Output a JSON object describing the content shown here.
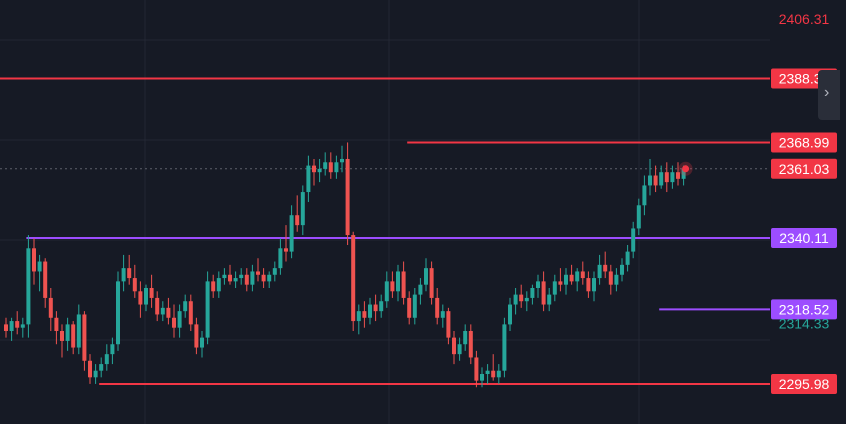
{
  "chart_data": {
    "type": "candlestick",
    "ylim": [
      2290,
      2410
    ],
    "colors": {
      "up": "#26a69a",
      "down": "#ef5350",
      "red_line": "#f23645",
      "purple_line": "#9c4dff",
      "grid": "#232733",
      "axis_text_red": "#f23645",
      "axis_text_green": "#26a69a",
      "background": "#161a25"
    },
    "axis_labels": [
      {
        "text": "2406.31",
        "value": 2406.31,
        "style": "text-red"
      },
      {
        "text": "2388.33",
        "value": 2388.33,
        "style": "badge-red"
      },
      {
        "text": "2368.99",
        "value": 2368.99,
        "style": "badge-red"
      },
      {
        "text": "2361.03",
        "value": 2361.03,
        "style": "badge-red"
      },
      {
        "text": "2340.11",
        "value": 2340.11,
        "style": "badge-purple"
      },
      {
        "text": "2318.52",
        "value": 2318.52,
        "style": "badge-purple"
      },
      {
        "text": "2314.33",
        "value": 2314.33,
        "style": "text-green"
      },
      {
        "text": "2295.98",
        "value": 2295.98,
        "style": "badge-red"
      }
    ],
    "levels": [
      {
        "value": 2388.33,
        "color": "red",
        "from_index": 0
      },
      {
        "value": 2368.99,
        "color": "red",
        "from_index": 72
      },
      {
        "value": 2340.11,
        "color": "purple",
        "from_index": 4
      },
      {
        "value": 2318.52,
        "color": "purple",
        "from_index": 117
      },
      {
        "value": 2295.98,
        "color": "red",
        "from_index": 17
      }
    ],
    "last_price": 2361.03,
    "candles": [
      [
        2314,
        2316,
        2310,
        2312
      ],
      [
        2312,
        2316,
        2309,
        2315
      ],
      [
        2315,
        2318,
        2311,
        2313
      ],
      [
        2313,
        2316,
        2310,
        2314
      ],
      [
        2314,
        2341,
        2310,
        2337
      ],
      [
        2337,
        2340,
        2326,
        2330
      ],
      [
        2330,
        2335,
        2324,
        2333
      ],
      [
        2333,
        2334,
        2319,
        2322
      ],
      [
        2322,
        2325,
        2312,
        2316
      ],
      [
        2316,
        2318,
        2308,
        2312
      ],
      [
        2312,
        2314,
        2304,
        2309
      ],
      [
        2309,
        2316,
        2306,
        2314
      ],
      [
        2314,
        2315,
        2305,
        2307
      ],
      [
        2307,
        2320,
        2305,
        2317
      ],
      [
        2317,
        2318,
        2300,
        2303
      ],
      [
        2303,
        2305,
        2296,
        2298
      ],
      [
        2298,
        2302,
        2296,
        2300
      ],
      [
        2300,
        2304,
        2298,
        2302
      ],
      [
        2302,
        2308,
        2300,
        2305
      ],
      [
        2305,
        2310,
        2302,
        2308
      ],
      [
        2308,
        2330,
        2306,
        2327
      ],
      [
        2327,
        2335,
        2324,
        2331
      ],
      [
        2331,
        2335,
        2326,
        2328
      ],
      [
        2328,
        2332,
        2322,
        2324
      ],
      [
        2324,
        2327,
        2316,
        2320
      ],
      [
        2320,
        2326,
        2318,
        2325
      ],
      [
        2325,
        2329,
        2319,
        2322
      ],
      [
        2322,
        2324,
        2315,
        2317
      ],
      [
        2317,
        2321,
        2315,
        2319
      ],
      [
        2319,
        2322,
        2314,
        2316
      ],
      [
        2316,
        2320,
        2310,
        2313
      ],
      [
        2313,
        2320,
        2310,
        2318
      ],
      [
        2318,
        2323,
        2316,
        2321
      ],
      [
        2321,
        2323,
        2312,
        2314
      ],
      [
        2314,
        2316,
        2305,
        2307
      ],
      [
        2307,
        2312,
        2304,
        2310
      ],
      [
        2310,
        2330,
        2308,
        2327
      ],
      [
        2327,
        2329,
        2322,
        2324
      ],
      [
        2324,
        2330,
        2322,
        2328
      ],
      [
        2328,
        2331,
        2326,
        2329
      ],
      [
        2329,
        2332,
        2326,
        2327
      ],
      [
        2327,
        2330,
        2325,
        2328
      ],
      [
        2328,
        2331,
        2326,
        2329
      ],
      [
        2329,
        2331,
        2324,
        2326
      ],
      [
        2326,
        2332,
        2324,
        2330
      ],
      [
        2330,
        2334,
        2327,
        2329
      ],
      [
        2329,
        2331,
        2325,
        2327
      ],
      [
        2327,
        2330,
        2325,
        2329
      ],
      [
        2329,
        2333,
        2327,
        2331
      ],
      [
        2331,
        2340,
        2329,
        2337
      ],
      [
        2337,
        2344,
        2333,
        2336
      ],
      [
        2336,
        2350,
        2334,
        2347
      ],
      [
        2347,
        2353,
        2342,
        2344
      ],
      [
        2344,
        2356,
        2341,
        2354
      ],
      [
        2354,
        2365,
        2351,
        2362
      ],
      [
        2362,
        2364,
        2356,
        2360
      ],
      [
        2360,
        2364,
        2357,
        2361
      ],
      [
        2361,
        2366,
        2359,
        2363
      ],
      [
        2363,
        2366,
        2358,
        2360
      ],
      [
        2360,
        2365,
        2358,
        2363
      ],
      [
        2363,
        2368,
        2360,
        2364
      ],
      [
        2364,
        2369,
        2338,
        2341
      ],
      [
        2341,
        2342,
        2312,
        2315
      ],
      [
        2315,
        2320,
        2311,
        2318
      ],
      [
        2318,
        2321,
        2313,
        2316
      ],
      [
        2316,
        2322,
        2314,
        2320
      ],
      [
        2320,
        2323,
        2315,
        2318
      ],
      [
        2318,
        2323,
        2316,
        2321
      ],
      [
        2321,
        2330,
        2319,
        2327
      ],
      [
        2327,
        2330,
        2322,
        2324
      ],
      [
        2324,
        2332,
        2321,
        2330
      ],
      [
        2330,
        2333,
        2320,
        2322
      ],
      [
        2322,
        2324,
        2314,
        2316
      ],
      [
        2316,
        2325,
        2314,
        2323
      ],
      [
        2323,
        2328,
        2320,
        2326
      ],
      [
        2326,
        2334,
        2324,
        2331
      ],
      [
        2331,
        2333,
        2320,
        2322
      ],
      [
        2322,
        2325,
        2314,
        2316
      ],
      [
        2316,
        2320,
        2313,
        2318
      ],
      [
        2318,
        2319,
        2308,
        2310
      ],
      [
        2310,
        2312,
        2302,
        2305
      ],
      [
        2305,
        2310,
        2303,
        2308
      ],
      [
        2308,
        2314,
        2306,
        2312
      ],
      [
        2312,
        2314,
        2302,
        2304
      ],
      [
        2304,
        2306,
        2295,
        2297
      ],
      [
        2297,
        2301,
        2295,
        2299
      ],
      [
        2299,
        2302,
        2296,
        2300
      ],
      [
        2300,
        2305,
        2297,
        2298
      ],
      [
        2298,
        2302,
        2296,
        2300
      ],
      [
        2300,
        2316,
        2298,
        2314
      ],
      [
        2314,
        2322,
        2312,
        2320
      ],
      [
        2320,
        2325,
        2317,
        2323
      ],
      [
        2323,
        2326,
        2319,
        2321
      ],
      [
        2321,
        2324,
        2318,
        2322
      ],
      [
        2322,
        2326,
        2320,
        2325
      ],
      [
        2325,
        2329,
        2322,
        2327
      ],
      [
        2327,
        2330,
        2318,
        2320
      ],
      [
        2320,
        2325,
        2318,
        2323
      ],
      [
        2323,
        2329,
        2321,
        2327
      ],
      [
        2327,
        2331,
        2324,
        2326
      ],
      [
        2326,
        2331,
        2323,
        2329
      ],
      [
        2329,
        2332,
        2326,
        2327
      ],
      [
        2327,
        2331,
        2324,
        2330
      ],
      [
        2330,
        2333,
        2326,
        2328
      ],
      [
        2328,
        2330,
        2322,
        2324
      ],
      [
        2324,
        2330,
        2321,
        2328
      ],
      [
        2328,
        2335,
        2326,
        2332
      ],
      [
        2332,
        2336,
        2328,
        2330
      ],
      [
        2330,
        2332,
        2323,
        2326
      ],
      [
        2326,
        2331,
        2324,
        2329
      ],
      [
        2329,
        2334,
        2327,
        2332
      ],
      [
        2332,
        2338,
        2330,
        2336
      ],
      [
        2336,
        2345,
        2334,
        2343
      ],
      [
        2343,
        2352,
        2341,
        2350
      ],
      [
        2350,
        2359,
        2347,
        2356
      ],
      [
        2356,
        2364,
        2353,
        2359
      ],
      [
        2359,
        2362,
        2354,
        2356
      ],
      [
        2356,
        2362,
        2355,
        2360
      ],
      [
        2360,
        2363,
        2354,
        2357
      ],
      [
        2357,
        2362,
        2355,
        2360
      ],
      [
        2360,
        2363,
        2356,
        2358
      ],
      [
        2358,
        2362,
        2356,
        2361
      ]
    ]
  }
}
